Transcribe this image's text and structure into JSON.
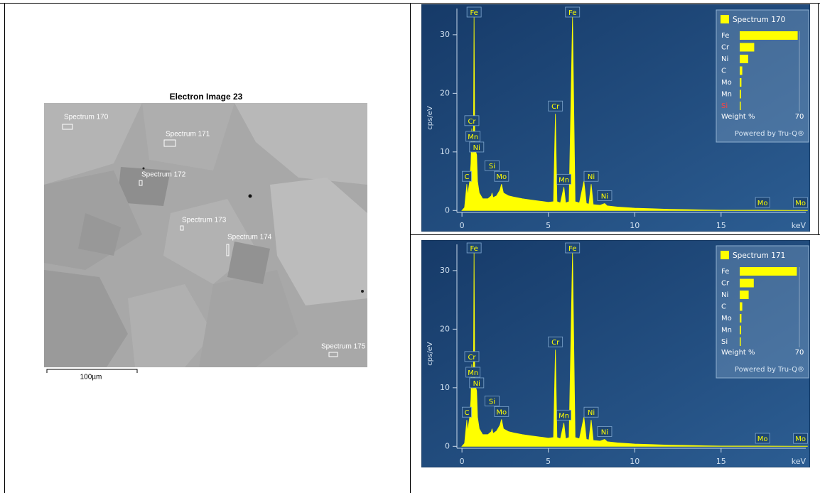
{
  "electron_image": {
    "title": "Electron Image 23",
    "spectra": [
      "Spectrum 170",
      "Spectrum 171",
      "Spectrum 172",
      "Spectrum 173",
      "Spectrum 174",
      "Spectrum 175"
    ],
    "scale_bar": "100µm"
  },
  "chart_data": [
    {
      "type": "line",
      "y_label": "cps/eV",
      "x_label": "keV",
      "x": [
        0,
        0.15,
        0.25,
        0.28,
        0.32,
        0.45,
        0.52,
        0.57,
        0.62,
        0.66,
        0.7,
        0.74,
        0.8,
        0.85,
        0.9,
        1.0,
        1.2,
        1.5,
        1.7,
        1.74,
        1.8,
        2.0,
        2.2,
        2.29,
        2.4,
        2.7,
        3.0,
        3.5,
        4.0,
        4.5,
        5.0,
        5.3,
        5.41,
        5.5,
        5.7,
        5.9,
        6.0,
        6.2,
        6.4,
        6.55,
        6.8,
        7.06,
        7.2,
        7.35,
        7.48,
        7.6,
        8.0,
        8.26,
        8.4,
        9,
        10,
        11,
        12,
        13,
        14,
        15,
        16,
        17,
        18,
        19,
        20
      ],
      "series": [
        {
          "name": "Spectrum 170",
          "color": "#ffff00",
          "values": [
            0,
            0.5,
            3.5,
            4.5,
            2.5,
            5,
            8,
            14,
            9,
            10,
            33,
            12,
            10,
            9.5,
            5,
            3,
            2,
            2,
            2.5,
            3,
            2.2,
            2.5,
            3.5,
            4.5,
            3,
            2.5,
            2.3,
            2,
            1.8,
            1.6,
            1.4,
            1.5,
            16.5,
            1.5,
            1.3,
            4,
            1.3,
            1.5,
            33,
            1.5,
            1.3,
            5,
            1.2,
            1.1,
            4.5,
            1.0,
            0.9,
            1.2,
            0.8,
            0.6,
            0.4,
            0.3,
            0.2,
            0.15,
            0.1,
            0.05,
            0.05,
            0.05,
            0.03,
            0.02,
            0.02
          ]
        }
      ],
      "xlim": [
        -2.35,
        20.15
      ],
      "ylim": [
        -3.6,
        35.2
      ],
      "xticks": [
        0,
        5,
        10,
        15
      ],
      "yticks": [
        0,
        10,
        20,
        30
      ],
      "peak_labels": [
        {
          "text": "Fe",
          "x": 0.7
        },
        {
          "text": "Fe",
          "x": 6.4
        },
        {
          "text": "Cr",
          "x": 0.57
        },
        {
          "text": "Mn",
          "x": 0.64
        },
        {
          "text": "Ni",
          "x": 0.85
        },
        {
          "text": "C",
          "x": 0.28
        },
        {
          "text": "Si",
          "x": 1.74
        },
        {
          "text": "Mo",
          "x": 2.29
        },
        {
          "text": "Cr",
          "x": 5.41
        },
        {
          "text": "Mn",
          "x": 5.9
        },
        {
          "text": "Ni",
          "x": 7.48
        },
        {
          "text": "Ni",
          "x": 8.26
        },
        {
          "text": "Mo",
          "x": 17.4
        },
        {
          "text": "Mo",
          "x": 19.6
        }
      ],
      "composition": {
        "categories": [
          "Fe",
          "Cr",
          "Ni",
          "C",
          "Mo",
          "Mn",
          "Si"
        ],
        "values": [
          68,
          17,
          10,
          3,
          2,
          1.5,
          0.5
        ],
        "colors": [
          "#ffffff",
          "#ffffff",
          "#ffffff",
          "#ffffff",
          "#ffffff",
          "#ffffff",
          "#ff4040"
        ],
        "xlim": [
          0,
          70
        ],
        "xticks": [
          70
        ],
        "label": "Weight %",
        "footer": "Powered by Tru-Q®"
      }
    },
    {
      "type": "line",
      "y_label": "cps/eV",
      "x_label": "keV",
      "x": [
        0,
        0.15,
        0.25,
        0.28,
        0.32,
        0.45,
        0.52,
        0.57,
        0.62,
        0.66,
        0.7,
        0.74,
        0.8,
        0.85,
        0.9,
        1.0,
        1.2,
        1.5,
        1.7,
        1.74,
        1.8,
        2.0,
        2.2,
        2.29,
        2.4,
        2.7,
        3.0,
        3.5,
        4.0,
        4.5,
        5.0,
        5.3,
        5.41,
        5.5,
        5.7,
        5.9,
        6.0,
        6.2,
        6.4,
        6.55,
        6.8,
        7.06,
        7.2,
        7.35,
        7.48,
        7.6,
        8.0,
        8.26,
        8.4,
        9,
        10,
        11,
        12,
        13,
        14,
        15,
        16,
        17,
        18,
        19,
        20
      ],
      "series": [
        {
          "name": "Spectrum 171",
          "color": "#ffff00",
          "values": [
            0,
            0.5,
            3.5,
            4.5,
            2.5,
            5,
            8,
            14,
            9,
            10,
            33,
            12,
            10,
            9.5,
            5,
            3,
            2,
            2,
            2.5,
            3,
            2.2,
            2.6,
            3.6,
            4.6,
            3,
            2.5,
            2.3,
            2,
            1.8,
            1.6,
            1.4,
            1.5,
            16.5,
            1.5,
            1.3,
            4,
            1.3,
            1.5,
            33,
            1.5,
            1.3,
            5,
            1.2,
            1.1,
            4.5,
            1.0,
            0.9,
            1.2,
            0.8,
            0.6,
            0.4,
            0.3,
            0.2,
            0.15,
            0.1,
            0.05,
            0.05,
            0.05,
            0.03,
            0.02,
            0.02
          ]
        }
      ],
      "xlim": [
        -2.35,
        20.15
      ],
      "ylim": [
        -3.6,
        35.2
      ],
      "xticks": [
        0,
        5,
        10,
        15
      ],
      "yticks": [
        0,
        10,
        20,
        30
      ],
      "peak_labels": [
        {
          "text": "Fe",
          "x": 0.7
        },
        {
          "text": "Fe",
          "x": 6.4
        },
        {
          "text": "Cr",
          "x": 0.57
        },
        {
          "text": "Mn",
          "x": 0.64
        },
        {
          "text": "Ni",
          "x": 0.85
        },
        {
          "text": "C",
          "x": 0.28
        },
        {
          "text": "Si",
          "x": 1.74
        },
        {
          "text": "Mo",
          "x": 2.29
        },
        {
          "text": "Cr",
          "x": 5.41
        },
        {
          "text": "Mn",
          "x": 5.9
        },
        {
          "text": "Ni",
          "x": 7.48
        },
        {
          "text": "Ni",
          "x": 8.26
        },
        {
          "text": "Mo",
          "x": 17.4
        },
        {
          "text": "Mo",
          "x": 19.6
        }
      ],
      "composition": {
        "categories": [
          "Fe",
          "Cr",
          "Ni",
          "C",
          "Mo",
          "Mn",
          "Si"
        ],
        "values": [
          67,
          16.5,
          10.5,
          3,
          2,
          1.5,
          0.6
        ],
        "colors": [
          "#ffffff",
          "#ffffff",
          "#ffffff",
          "#ffffff",
          "#ffffff",
          "#ffffff",
          "#ffffff"
        ],
        "xlim": [
          0,
          70
        ],
        "xticks": [
          70
        ],
        "label": "Weight %",
        "footer": "Powered by Tru-Q®"
      }
    }
  ]
}
